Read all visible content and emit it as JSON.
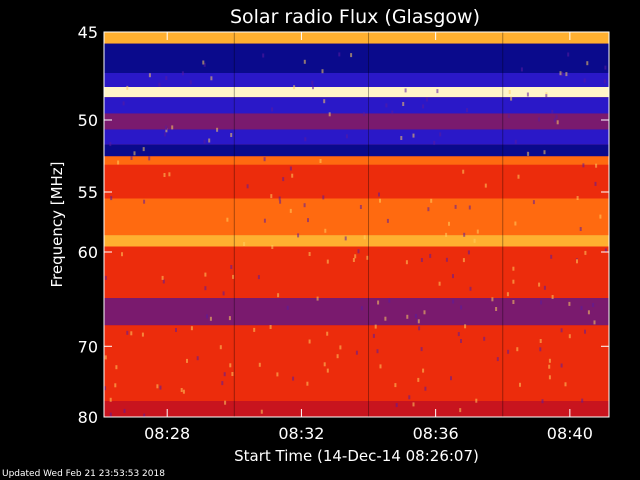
{
  "chart_data": {
    "type": "heatmap",
    "title": "Solar radio Flux (Glasgow)",
    "xlabel": "Start Time (14-Dec-14 08:26:07)",
    "ylabel": "Frequency [MHz]",
    "x_unit": "time (UT)",
    "xlim": [
      "08:26:07",
      "08:41:10"
    ],
    "ylim": [
      45,
      80
    ],
    "y_scale": "reciprocal (inverted)",
    "x_ticks": [
      "08:28",
      "08:32",
      "08:36",
      "08:40"
    ],
    "y_ticks": [
      45,
      50,
      55,
      60,
      70,
      80
    ],
    "segment_boundaries": [
      "08:30:00",
      "08:34:00",
      "08:38:00"
    ],
    "bands": [
      {
        "from": 45.0,
        "to": 45.6,
        "level": "very-high"
      },
      {
        "from": 45.6,
        "to": 47.2,
        "level": "very-low"
      },
      {
        "from": 47.2,
        "to": 48.0,
        "level": "low"
      },
      {
        "from": 48.0,
        "to": 48.6,
        "level": "peak"
      },
      {
        "from": 48.6,
        "to": 49.6,
        "level": "low"
      },
      {
        "from": 49.6,
        "to": 50.6,
        "level": "mid-low"
      },
      {
        "from": 50.6,
        "to": 51.6,
        "level": "low"
      },
      {
        "from": 51.6,
        "to": 52.4,
        "level": "very-low"
      },
      {
        "from": 52.4,
        "to": 53.0,
        "level": "high"
      },
      {
        "from": 53.0,
        "to": 55.5,
        "level": "mid-high"
      },
      {
        "from": 55.5,
        "to": 58.5,
        "level": "high"
      },
      {
        "from": 58.5,
        "to": 59.5,
        "level": "very-high"
      },
      {
        "from": 59.5,
        "to": 64.5,
        "level": "mid-high"
      },
      {
        "from": 64.5,
        "to": 67.5,
        "level": "mid-low"
      },
      {
        "from": 67.5,
        "to": 77.5,
        "level": "mid-high"
      },
      {
        "from": 77.5,
        "to": 80.0,
        "level": "mid"
      }
    ],
    "colors": {
      "very-low": "#0a0a8c",
      "low": "#2a18c8",
      "mid-low": "#7a1a6e",
      "mid": "#c8141e",
      "mid-high": "#ec2c0c",
      "high": "#ff6a10",
      "very-high": "#ffb030",
      "peak": "#fff6c8"
    }
  },
  "footer": "Updated Wed Feb 21 23:53:53 2018"
}
